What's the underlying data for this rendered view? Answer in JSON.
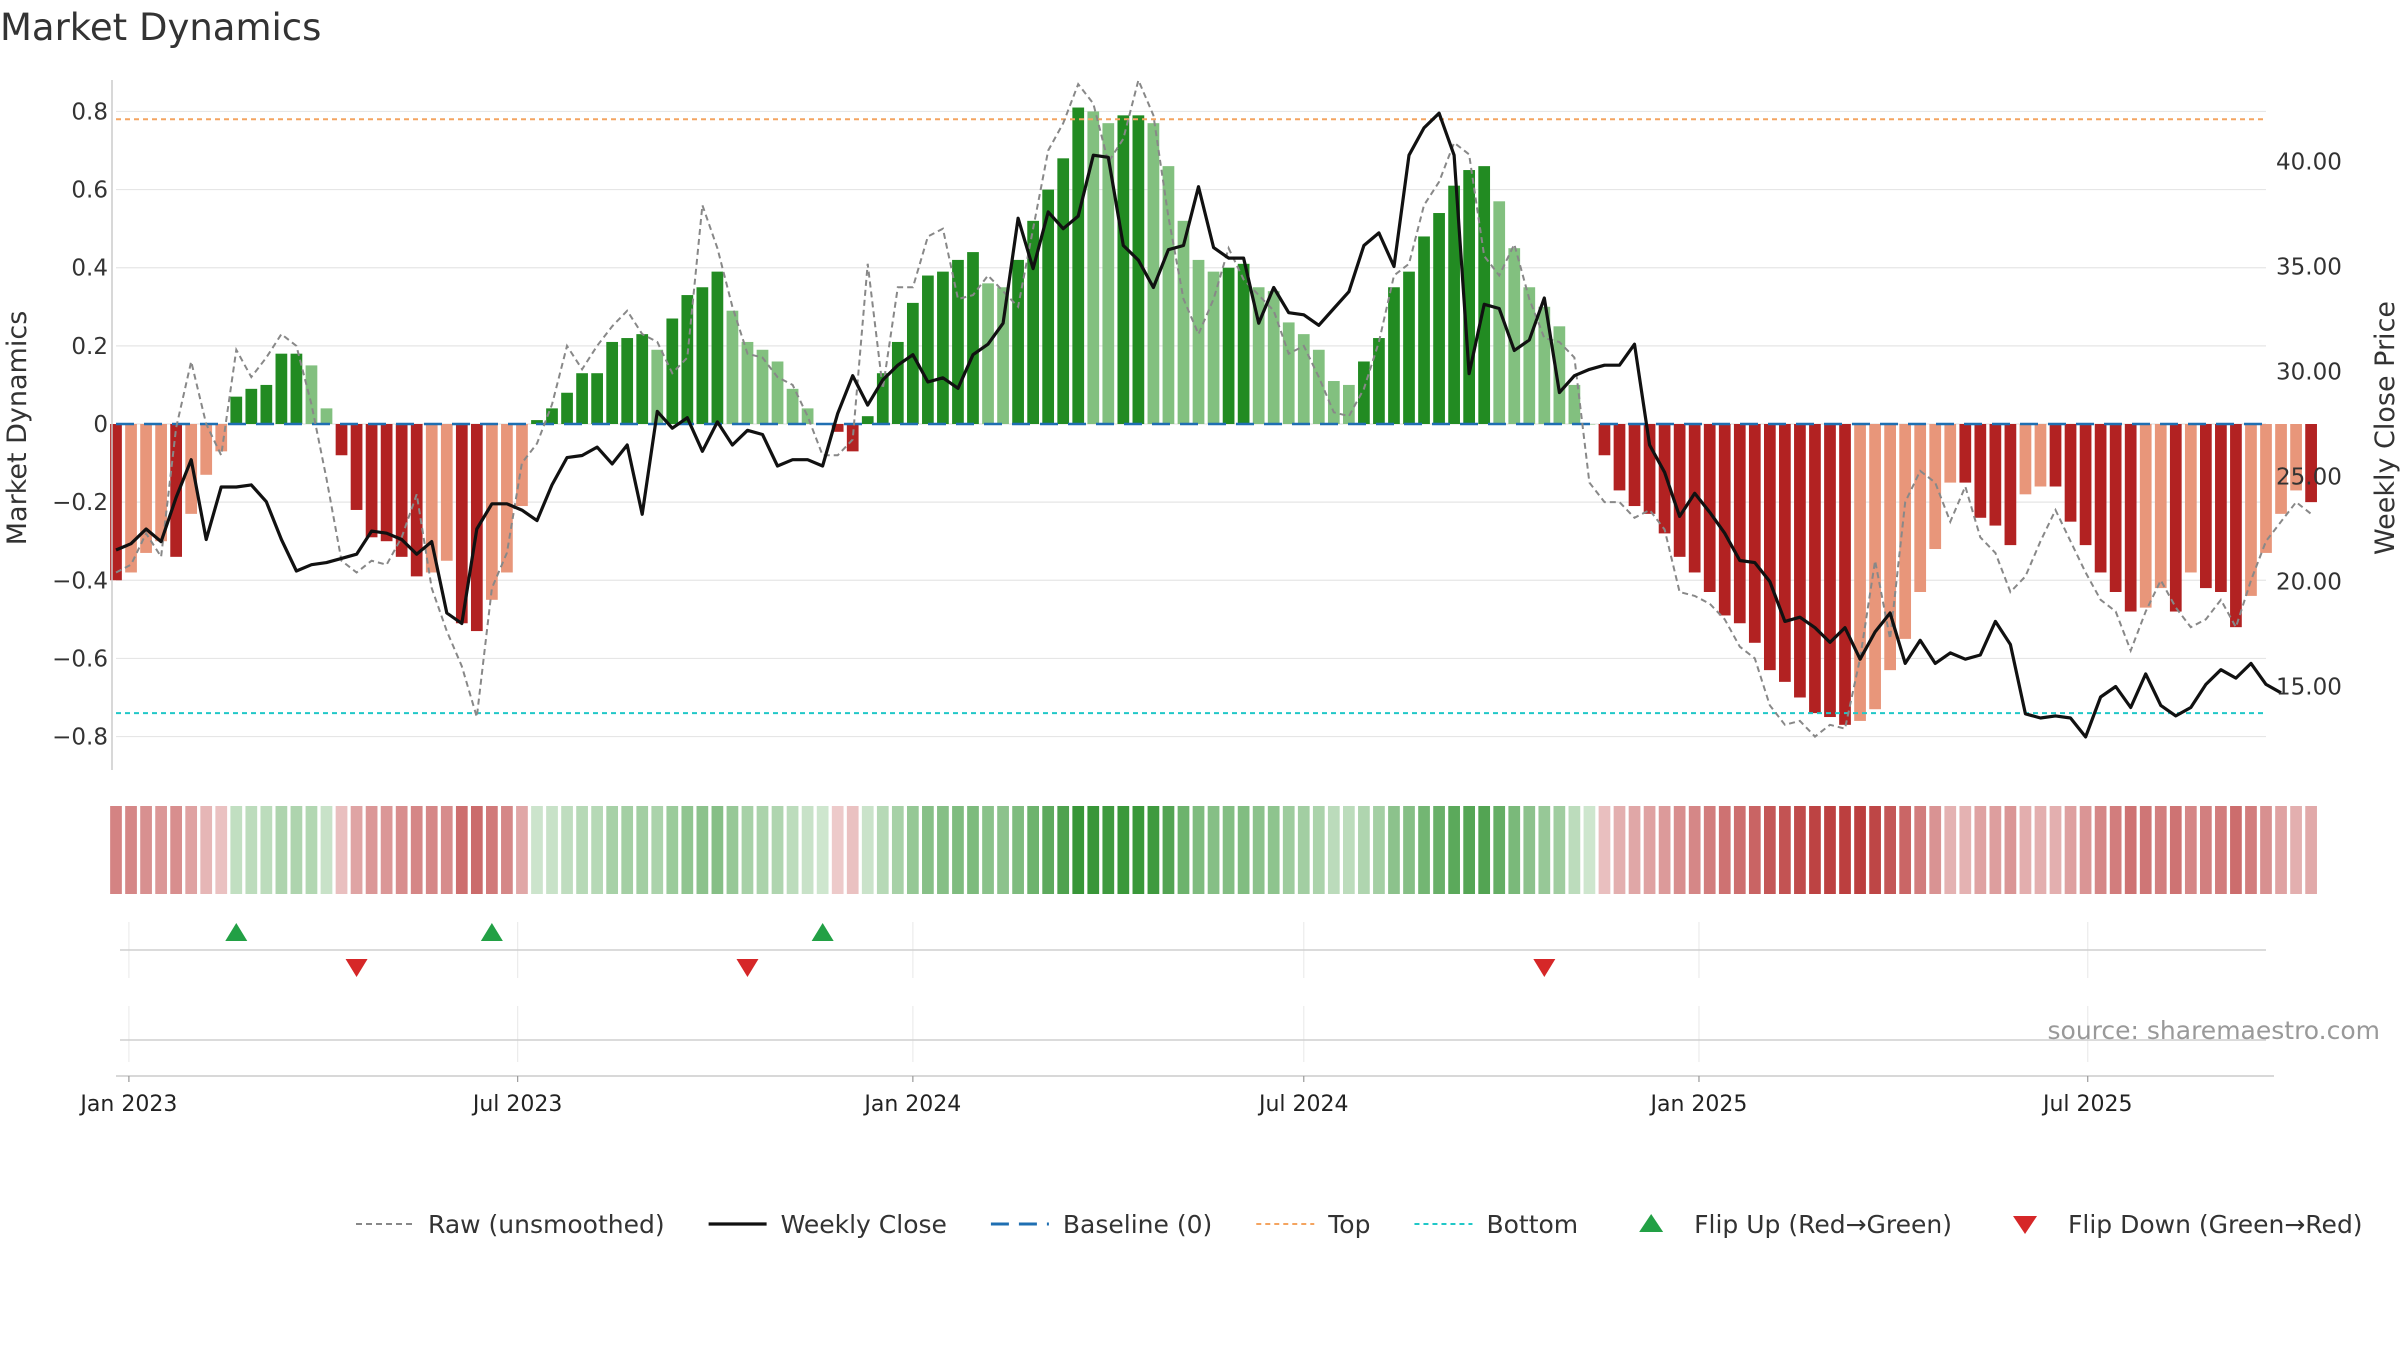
{
  "title": "Market Dynamics",
  "watermark": "source: sharemaestro.com",
  "colors": {
    "strong_green": "#228b22",
    "light_green": "#82c07f",
    "strong_red": "#b22222",
    "light_red": "#e8967a",
    "raw": "#888888",
    "close": "#111111",
    "baseline": "#1f6fb2",
    "top": "#f4a460",
    "bottom": "#20c8c8",
    "flip_up": "#22a045",
    "flip_down": "#d62728"
  },
  "chart_data": {
    "type": "bar",
    "title": "Market Dynamics",
    "ylabel_left": "Market Dynamics",
    "ylabel_right": "Weekly Close Price",
    "ylim_left": [
      -0.86,
      0.86
    ],
    "ylim_right": [
      11.5,
      43.5
    ],
    "left_ticks": [
      "−0.8",
      "−0.6",
      "−0.4",
      "−0.2",
      "0",
      "0.2",
      "0.4",
      "0.6",
      "0.8"
    ],
    "left_tick_values": [
      -0.8,
      -0.6,
      -0.4,
      -0.2,
      0,
      0.2,
      0.4,
      0.6,
      0.8
    ],
    "right_ticks": [
      "15.00",
      "20.00",
      "25.00",
      "30.00",
      "35.00",
      "40.00"
    ],
    "right_tick_values": [
      15,
      20,
      25,
      30,
      35,
      40
    ],
    "x_start": "2022-12-26",
    "x_end": "2025-09-22",
    "x_ticks": [
      {
        "date": "2023-01-01",
        "label": "Jan 2023"
      },
      {
        "date": "2023-07-01",
        "label": "Jul 2023"
      },
      {
        "date": "2024-01-01",
        "label": "Jan 2024"
      },
      {
        "date": "2024-07-01",
        "label": "Jul 2024"
      },
      {
        "date": "2025-01-01",
        "label": "Jan 2025"
      },
      {
        "date": "2025-07-01",
        "label": "Jul 2025"
      }
    ],
    "bar_start_date": "2022-12-26",
    "bar_interval_days": 7,
    "bars": [
      -0.4,
      -0.38,
      -0.33,
      -0.3,
      -0.34,
      -0.23,
      -0.13,
      -0.07,
      0.07,
      0.09,
      0.1,
      0.18,
      0.18,
      0.15,
      0.04,
      -0.08,
      -0.22,
      -0.29,
      -0.3,
      -0.34,
      -0.39,
      -0.38,
      -0.35,
      -0.51,
      -0.53,
      -0.45,
      -0.38,
      -0.21,
      0.01,
      0.04,
      0.08,
      0.13,
      0.13,
      0.21,
      0.22,
      0.23,
      0.19,
      0.27,
      0.33,
      0.35,
      0.39,
      0.29,
      0.21,
      0.19,
      0.16,
      0.09,
      0.04,
      0.0,
      -0.02,
      -0.07,
      0.02,
      0.13,
      0.21,
      0.31,
      0.38,
      0.39,
      0.42,
      0.44,
      0.36,
      0.35,
      0.42,
      0.52,
      0.6,
      0.68,
      0.81,
      0.8,
      0.77,
      0.79,
      0.79,
      0.77,
      0.66,
      0.52,
      0.42,
      0.39,
      0.4,
      0.41,
      0.35,
      0.34,
      0.26,
      0.23,
      0.19,
      0.11,
      0.1,
      0.16,
      0.22,
      0.35,
      0.39,
      0.48,
      0.54,
      0.61,
      0.65,
      0.66,
      0.57,
      0.45,
      0.35,
      0.3,
      0.25,
      0.1,
      0.0,
      -0.08,
      -0.17,
      -0.21,
      -0.23,
      -0.28,
      -0.34,
      -0.38,
      -0.43,
      -0.49,
      -0.51,
      -0.56,
      -0.63,
      -0.66,
      -0.7,
      -0.74,
      -0.75,
      -0.77,
      -0.76,
      -0.73,
      -0.63,
      -0.55,
      -0.43,
      -0.32,
      -0.15,
      -0.15,
      -0.24,
      -0.26,
      -0.31,
      -0.18,
      -0.16,
      -0.16,
      -0.25,
      -0.31,
      -0.38,
      -0.43,
      -0.48,
      -0.47,
      -0.42,
      -0.48,
      -0.38,
      -0.42,
      -0.43,
      -0.52,
      -0.44,
      -0.33,
      -0.23,
      -0.17,
      -0.2
    ],
    "raw": [
      -0.38,
      -0.36,
      -0.28,
      -0.34,
      -0.01,
      0.16,
      0.0,
      -0.08,
      0.19,
      0.12,
      0.17,
      0.23,
      0.2,
      0.05,
      -0.14,
      -0.35,
      -0.38,
      -0.35,
      -0.36,
      -0.29,
      -0.18,
      -0.42,
      -0.53,
      -0.62,
      -0.75,
      -0.42,
      -0.33,
      -0.1,
      -0.05,
      0.05,
      0.2,
      0.14,
      0.2,
      0.25,
      0.29,
      0.23,
      0.21,
      0.13,
      0.17,
      0.56,
      0.45,
      0.3,
      0.18,
      0.17,
      0.12,
      0.1,
      0.02,
      -0.08,
      -0.08,
      -0.04,
      0.41,
      0.09,
      0.35,
      0.35,
      0.48,
      0.5,
      0.32,
      0.33,
      0.38,
      0.34,
      0.3,
      0.5,
      0.7,
      0.77,
      0.87,
      0.82,
      0.67,
      0.73,
      0.88,
      0.79,
      0.53,
      0.32,
      0.23,
      0.32,
      0.45,
      0.37,
      0.33,
      0.29,
      0.18,
      0.2,
      0.12,
      0.03,
      0.02,
      0.09,
      0.21,
      0.38,
      0.41,
      0.56,
      0.62,
      0.72,
      0.69,
      0.43,
      0.38,
      0.46,
      0.32,
      0.22,
      0.21,
      0.17,
      -0.15,
      -0.2,
      -0.2,
      -0.24,
      -0.22,
      -0.27,
      -0.43,
      -0.44,
      -0.46,
      -0.5,
      -0.57,
      -0.6,
      -0.72,
      -0.77,
      -0.76,
      -0.8,
      -0.77,
      -0.78,
      -0.6,
      -0.35,
      -0.55,
      -0.2,
      -0.12,
      -0.15,
      -0.25,
      -0.16,
      -0.29,
      -0.33,
      -0.43,
      -0.39,
      -0.3,
      -0.22,
      -0.3,
      -0.38,
      -0.45,
      -0.48,
      -0.58,
      -0.48,
      -0.4,
      -0.47,
      -0.52,
      -0.5,
      -0.45,
      -0.52,
      -0.4,
      -0.3,
      -0.25,
      -0.2,
      -0.23
    ],
    "close": [
      21.5,
      21.8,
      22.5,
      21.9,
      24.0,
      25.8,
      22.0,
      24.5,
      24.5,
      24.6,
      23.8,
      22.0,
      20.5,
      20.8,
      20.9,
      21.1,
      21.3,
      22.4,
      22.3,
      22.0,
      21.3,
      21.9,
      18.5,
      18.0,
      22.5,
      23.7,
      23.7,
      23.4,
      22.9,
      24.6,
      25.9,
      26.0,
      26.4,
      25.6,
      26.5,
      23.2,
      28.1,
      27.3,
      27.8,
      26.2,
      27.6,
      26.5,
      27.2,
      27.0,
      25.5,
      25.8,
      25.8,
      25.5,
      28.0,
      29.8,
      28.4,
      29.6,
      30.3,
      30.8,
      29.5,
      29.7,
      29.2,
      30.8,
      31.3,
      32.3,
      37.3,
      34.9,
      37.6,
      36.8,
      37.4,
      40.3,
      40.2,
      36.0,
      35.3,
      34.0,
      35.8,
      36.0,
      38.8,
      35.9,
      35.4,
      35.4,
      32.3,
      34.0,
      32.8,
      32.7,
      32.2,
      33.0,
      33.8,
      36.0,
      36.6,
      35.0,
      40.3,
      41.6,
      42.3,
      40.3,
      29.9,
      33.2,
      33.0,
      31.0,
      31.5,
      33.5,
      29.0,
      29.8,
      30.1,
      30.3,
      30.3,
      31.3,
      26.5,
      25.2,
      23.1,
      24.2,
      23.3,
      22.3,
      21.0,
      20.9,
      20.0,
      18.1,
      18.3,
      17.8,
      17.1,
      17.8,
      16.3,
      17.6,
      18.5,
      16.1,
      17.2,
      16.1,
      16.6,
      16.3,
      16.5,
      18.1,
      17.0,
      13.7,
      13.5,
      13.6,
      13.5,
      12.6,
      14.5,
      15.0,
      14.0,
      15.6,
      14.1,
      13.6,
      14.0,
      15.1,
      15.8,
      15.4,
      16.1,
      15.1,
      14.7
    ],
    "baseline": 0,
    "top": 0.78,
    "bottom": -0.74,
    "flip_up_dates": [
      "2023-02-20",
      "2023-06-19",
      "2023-11-20"
    ],
    "flip_down_dates": [
      "2023-04-17",
      "2023-10-16",
      "2024-10-21"
    ],
    "legend": {
      "placement": "bottom-center",
      "items": [
        {
          "label": "Raw (unsmoothed)",
          "kind": "dashed-line"
        },
        {
          "label": "Weekly Close",
          "kind": "line"
        },
        {
          "label": "Baseline (0)",
          "kind": "long-dash"
        },
        {
          "label": "Top",
          "kind": "dotted-orange"
        },
        {
          "label": "Bottom",
          "kind": "dotted-cyan"
        },
        {
          "label": "Flip Up (Red→Green)",
          "kind": "triangle-up"
        },
        {
          "label": "Flip Down (Green→Red)",
          "kind": "triangle-down"
        }
      ]
    }
  }
}
